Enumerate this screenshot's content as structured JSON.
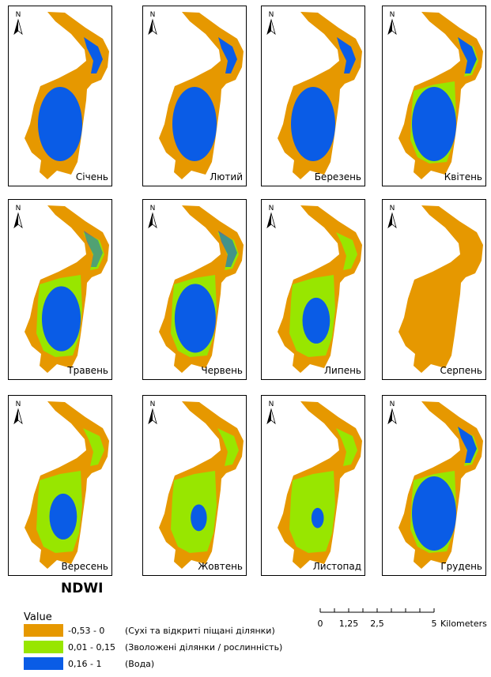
{
  "panels": [
    {
      "month": "Січень",
      "north": "N"
    },
    {
      "month": "Лютий",
      "north": "N"
    },
    {
      "month": "Березень",
      "north": "N"
    },
    {
      "month": "Квітень",
      "north": "N"
    },
    {
      "month": "Травень",
      "north": "N"
    },
    {
      "month": "Червень",
      "north": "N"
    },
    {
      "month": "Липень",
      "north": "N"
    },
    {
      "month": "Серпень",
      "north": "N"
    },
    {
      "month": "Вересень",
      "north": "N"
    },
    {
      "month": "Жовтень",
      "north": "N"
    },
    {
      "month": "Листопад",
      "north": "N"
    },
    {
      "month": "Грудень",
      "north": "N"
    }
  ],
  "title": "NDWI",
  "legend": {
    "title": "Value",
    "items": [
      {
        "range": "-0,53 - 0",
        "description": "(Сухі та відкриті піщані ділянки)",
        "color": "#e69800"
      },
      {
        "range": "0,01 - 0,15",
        "description": "(Зволожені ділянки / рослинність)",
        "color": "#98e600"
      },
      {
        "range": "0,16 - 1",
        "description": "(Вода)",
        "color": "#0a5ce6"
      }
    ]
  },
  "scale": {
    "labels": [
      "0",
      "1,25",
      "2,5",
      "5"
    ],
    "unit": "Kilometers"
  }
}
